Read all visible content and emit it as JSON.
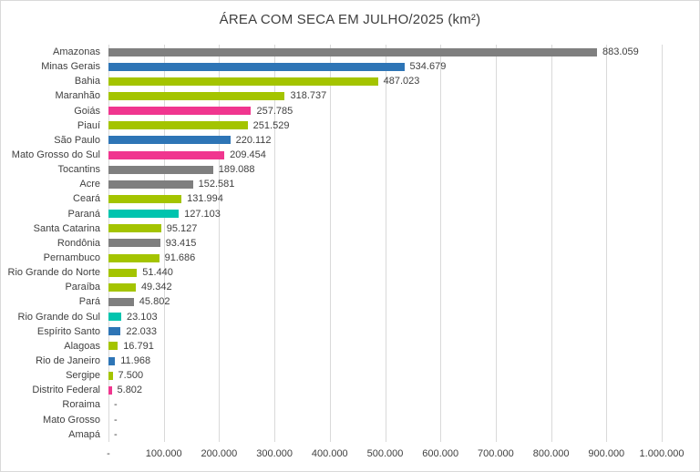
{
  "chart_data": {
    "type": "bar",
    "orientation": "horizontal",
    "title": "ÁREA COM SECA EM JULHO/2025 (km²)",
    "xlabel": "",
    "ylabel": "",
    "xlim": [
      0,
      1000000
    ],
    "grid": true,
    "legend": "none",
    "categories": [
      "Amazonas",
      "Minas Gerais",
      "Bahia",
      "Maranhão",
      "Goiás",
      "Piauí",
      "São Paulo",
      "Mato Grosso do Sul",
      "Tocantins",
      "Acre",
      "Ceará",
      "Paraná",
      "Santa Catarina",
      "Rondônia",
      "Pernambuco",
      "Rio Grande do Norte",
      "Paraíba",
      "Pará",
      "Rio Grande do Sul",
      "Espírito Santo",
      "Alagoas",
      "Rio de Janeiro",
      "Sergipe",
      "Distrito Federal",
      "Roraima",
      "Mato Grosso",
      "Amapá"
    ],
    "values": [
      883059,
      534679,
      487023,
      318737,
      257785,
      251529,
      220112,
      209454,
      189088,
      152581,
      131994,
      127103,
      95127,
      93415,
      91686,
      51440,
      49342,
      45802,
      23103,
      22033,
      16791,
      11968,
      7500,
      5802,
      0,
      0,
      0
    ],
    "value_labels": [
      "883.059",
      "534.679",
      "487.023",
      "318.737",
      "257.785",
      "251.529",
      "220.112",
      "209.454",
      "189.088",
      "152.581",
      "131.994",
      "127.103",
      "95.127",
      "93.415",
      "91.686",
      "51.440",
      "49.342",
      "45.802",
      "23.103",
      "22.033",
      "16.791",
      "11.968",
      "7.500",
      "5.802",
      "-",
      "-",
      "-"
    ],
    "bar_colors": [
      "gray",
      "blue",
      "green",
      "green",
      "pink",
      "green",
      "blue",
      "pink",
      "gray",
      "gray",
      "green",
      "teal",
      "green",
      "gray",
      "green",
      "green",
      "green",
      "gray",
      "teal",
      "blue",
      "green",
      "blue",
      "green",
      "pink",
      "none",
      "none",
      "none"
    ],
    "palette": {
      "gray": "#7f7f7f",
      "blue": "#2e75b6",
      "green": "#a4c400",
      "pink": "#f0368f",
      "teal": "#00c4ae",
      "none": "transparent"
    },
    "x_tick_labels": [
      "-",
      "100.000",
      "200.000",
      "300.000",
      "400.000",
      "500.000",
      "600.000",
      "700.000",
      "800.000",
      "900.000",
      "1.000.000"
    ],
    "gridline_color": "#d9d9d9"
  }
}
